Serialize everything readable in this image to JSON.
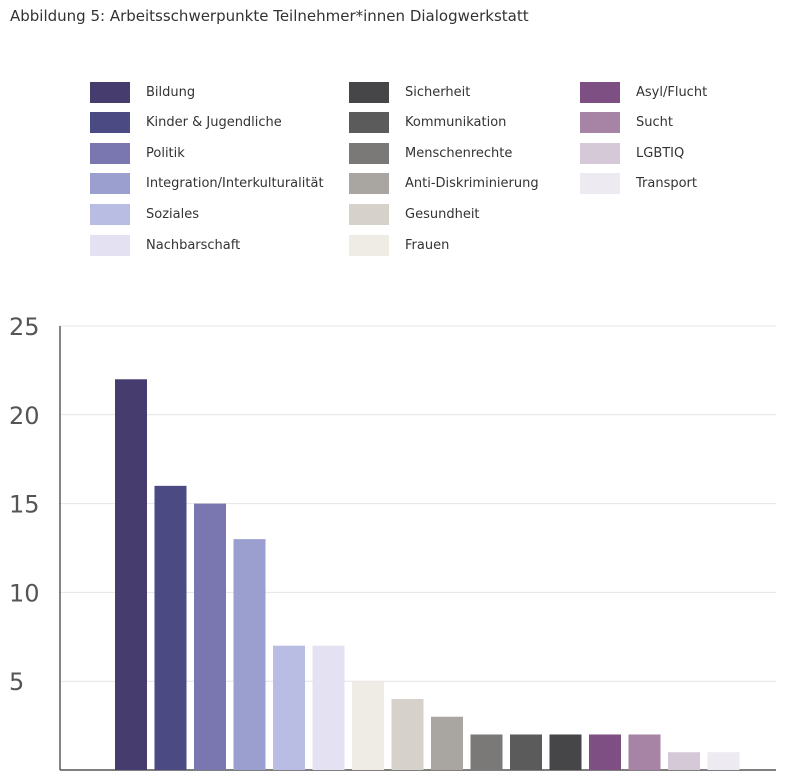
{
  "chart_data": {
    "type": "bar",
    "title": "Abbildung 5: Arbeitsschwerpunkte Teilnehmer*innen Dialogwerkstatt",
    "categories": [
      "Bildung",
      "Kinder & Jugendliche",
      "Politik",
      "Integration/Interkulturalität",
      "Soziales",
      "Nachbarschaft",
      "Frauen",
      "Gesundheit",
      "Anti-Diskriminierung",
      "Menschenrechte",
      "Kommunikation",
      "Sicherheit",
      "Asyl/Flucht",
      "Sucht",
      "LGBTIQ",
      "Transport"
    ],
    "values": [
      22,
      16,
      15,
      13,
      7,
      7,
      5,
      4,
      3,
      2,
      2,
      2,
      2,
      2,
      1,
      1
    ],
    "colors": [
      "#463d6e",
      "#4b4a82",
      "#7a77b0",
      "#9a9fd0",
      "#b9bde3",
      "#e4e2f2",
      "#efebe5",
      "#d6d2cb",
      "#a9a5a0",
      "#7b7878",
      "#5c5b5c",
      "#464547",
      "#7d4f83",
      "#a783a5",
      "#d5c8d7",
      "#eeeaf1"
    ],
    "xlabel": "",
    "ylabel": "",
    "ylim": [
      0,
      25
    ],
    "yticks": [
      {
        "value": 5,
        "label": "5"
      },
      {
        "value": 10,
        "label": "10"
      },
      {
        "value": 15,
        "label": "15"
      },
      {
        "value": 20,
        "label": "20"
      },
      {
        "value": 25,
        "label": "25"
      }
    ],
    "grid": true,
    "legend": {
      "columns": [
        [
          "Bildung",
          "Kinder & Jugendliche",
          "Politik",
          "Integration/Interkulturalität",
          "Soziales",
          "Nachbarschaft"
        ],
        [
          "Sicherheit",
          "Kommunikation",
          "Menschenrechte",
          "Anti-Diskriminierung",
          "Gesundheit",
          "Frauen"
        ],
        [
          "Asyl/Flucht",
          "Sucht",
          "LGBTIQ",
          "Transport"
        ]
      ]
    }
  }
}
